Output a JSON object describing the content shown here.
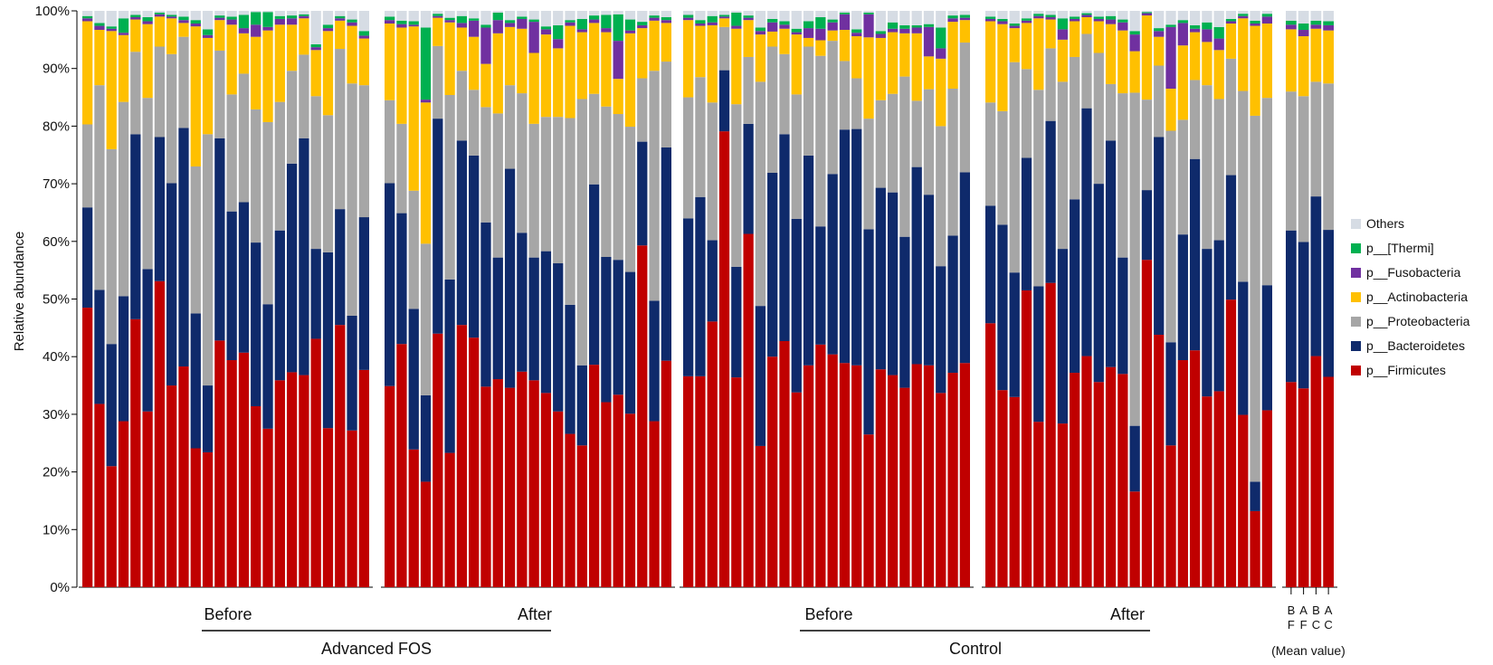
{
  "chart_data": {
    "type": "bar",
    "stacked": true,
    "ylabel": "Relative abundance",
    "ylim": [
      0,
      100
    ],
    "yticks": [
      "0%",
      "10%",
      "20%",
      "30%",
      "40%",
      "50%",
      "60%",
      "70%",
      "80%",
      "90%",
      "100%"
    ],
    "legend": {
      "placement": "right",
      "entries": [
        "Others",
        "p__[Thermi]",
        "p__Fusobacteria",
        "p__Actinobacteria",
        "p__Proteobacteria",
        "p__Bacteroidetes",
        "p__Firmicutes"
      ]
    },
    "series_order": [
      "p__Firmicutes",
      "p__Bacteroidetes",
      "p__Proteobacteria",
      "p__Actinobacteria",
      "p__Fusobacteria",
      "p__[Thermi]",
      "Others"
    ],
    "colors": {
      "p__Firmicutes": "#c00000",
      "p__Bacteroidetes": "#0f2a6b",
      "p__Proteobacteria": "#a6a6a6",
      "p__Actinobacteria": "#ffc000",
      "p__Fusobacteria": "#7030a0",
      "p__[Thermi]": "#00b050",
      "Others": "#d6dce4"
    },
    "panels": [
      {
        "id": "AF-Before",
        "cumulative": [
          [
            48.5,
            65.9,
            80.3,
            98.2,
            98.7,
            99.1
          ],
          [
            31.8,
            51.6,
            87.1,
            96.7,
            97.4,
            97.9
          ],
          [
            21.0,
            42.2,
            76.0,
            96.5,
            96.9,
            97.3
          ],
          [
            28.8,
            50.5,
            84.2,
            95.8,
            96.2,
            98.7
          ],
          [
            46.5,
            78.6,
            92.9,
            98.5,
            98.9,
            99.3
          ],
          [
            30.5,
            55.2,
            84.9,
            97.7,
            98.2,
            98.9
          ],
          [
            53.1,
            78.1,
            93.8,
            99.0,
            99.4,
            99.7
          ],
          [
            35.0,
            70.1,
            92.5,
            98.7,
            99.0,
            99.3
          ],
          [
            38.3,
            79.7,
            95.5,
            97.9,
            98.4,
            99.0
          ],
          [
            24.1,
            47.5,
            73.0,
            97.3,
            97.8,
            98.4
          ],
          [
            23.4,
            35.0,
            78.6,
            95.3,
            95.8,
            96.8
          ],
          [
            42.8,
            77.9,
            93.1,
            98.4,
            98.8,
            99.2
          ],
          [
            39.4,
            65.2,
            85.5,
            97.6,
            98.5,
            99.0
          ],
          [
            40.7,
            66.8,
            89.1,
            96.1,
            97.0,
            99.3
          ],
          [
            31.4,
            59.8,
            82.9,
            95.5,
            97.6,
            99.8
          ],
          [
            27.5,
            49.1,
            80.7,
            96.6,
            97.2,
            99.8
          ],
          [
            35.9,
            61.9,
            84.2,
            97.6,
            98.6,
            99.1
          ],
          [
            37.3,
            73.5,
            89.6,
            97.6,
            98.7,
            99.2
          ],
          [
            36.8,
            77.9,
            92.4,
            98.7,
            99.1,
            99.4
          ],
          [
            43.1,
            58.7,
            85.2,
            93.2,
            93.7,
            94.2
          ],
          [
            27.6,
            58.1,
            81.9,
            96.5,
            97.0,
            97.6
          ],
          [
            45.5,
            65.6,
            93.4,
            98.3,
            98.7,
            99.1
          ],
          [
            27.2,
            47.1,
            87.4,
            97.4,
            98.0,
            98.5
          ],
          [
            37.7,
            64.2,
            87.1,
            95.2,
            95.7,
            96.5
          ]
        ]
      },
      {
        "id": "AF-After",
        "cumulative": [
          [
            34.9,
            70.1,
            84.5,
            97.8,
            98.4,
            99.0
          ],
          [
            42.2,
            64.9,
            80.4,
            97.1,
            97.7,
            98.3
          ],
          [
            23.9,
            48.3,
            68.8,
            97.3,
            97.6,
            98.2
          ],
          [
            18.3,
            33.3,
            59.6,
            84.1,
            84.6,
            97.1
          ],
          [
            44.0,
            81.3,
            93.9,
            98.8,
            99.1,
            99.5
          ],
          [
            23.3,
            53.4,
            85.4,
            98.0,
            98.4,
            98.8
          ],
          [
            45.5,
            77.5,
            89.6,
            97.1,
            97.9,
            99.1
          ],
          [
            43.3,
            74.9,
            86.3,
            95.5,
            98.3,
            98.7
          ],
          [
            34.8,
            63.3,
            83.3,
            90.8,
            97.1,
            97.6
          ],
          [
            36.1,
            57.2,
            82.2,
            96.1,
            98.4,
            99.7
          ],
          [
            34.6,
            72.6,
            87.1,
            97.2,
            97.9,
            98.4
          ],
          [
            37.4,
            61.5,
            85.7,
            96.9,
            98.6,
            99.0
          ],
          [
            35.9,
            57.2,
            80.4,
            92.7,
            98.1,
            98.5
          ],
          [
            33.7,
            58.3,
            81.6,
            95.9,
            96.8,
            97.3
          ],
          [
            30.5,
            56.2,
            81.6,
            93.5,
            95.1,
            97.5
          ],
          [
            26.6,
            49.0,
            81.4,
            97.4,
            98.0,
            98.4
          ],
          [
            24.6,
            38.5,
            84.7,
            96.3,
            96.8,
            98.6
          ],
          [
            38.6,
            69.9,
            85.6,
            97.9,
            98.5,
            99.2
          ],
          [
            32.1,
            57.3,
            83.4,
            96.3,
            97.0,
            99.3
          ],
          [
            33.4,
            56.8,
            82.1,
            88.2,
            94.8,
            99.4
          ],
          [
            30.1,
            54.7,
            79.9,
            96.1,
            96.6,
            98.5
          ],
          [
            59.3,
            77.3,
            88.3,
            97.0,
            97.5,
            98.1
          ],
          [
            28.8,
            49.7,
            89.6,
            98.3,
            98.8,
            99.2
          ],
          [
            39.3,
            76.3,
            91.2,
            97.9,
            98.4,
            98.9
          ]
        ]
      },
      {
        "id": "C-Before",
        "cumulative": [
          [
            36.6,
            64.0,
            85.0,
            98.4,
            98.8,
            99.3
          ],
          [
            36.6,
            67.7,
            88.5,
            97.4,
            97.8,
            98.4
          ],
          [
            46.1,
            60.2,
            84.1,
            97.5,
            98.0,
            99.1
          ],
          [
            79.1,
            89.7,
            97.2,
            98.7,
            99.0,
            99.3
          ],
          [
            36.4,
            55.6,
            83.8,
            96.9,
            97.4,
            99.7
          ],
          [
            61.3,
            80.4,
            92.0,
            98.4,
            98.8,
            99.2
          ],
          [
            24.5,
            48.8,
            87.7,
            95.9,
            96.5,
            97.1
          ],
          [
            40.0,
            71.9,
            93.8,
            96.4,
            98.0,
            98.6
          ],
          [
            42.7,
            78.6,
            92.5,
            96.9,
            97.6,
            98.2
          ],
          [
            33.8,
            63.9,
            85.5,
            95.9,
            96.3,
            96.9
          ],
          [
            38.5,
            74.9,
            93.8,
            95.3,
            97.0,
            98.2
          ],
          [
            42.1,
            62.6,
            92.2,
            94.9,
            96.9,
            98.9
          ],
          [
            40.4,
            71.7,
            94.8,
            96.6,
            98.0,
            98.5
          ],
          [
            38.9,
            79.4,
            91.3,
            96.7,
            99.4,
            99.7
          ],
          [
            38.5,
            79.5,
            88.3,
            95.6,
            96.2,
            96.8
          ],
          [
            26.5,
            62.1,
            81.3,
            95.4,
            99.4,
            99.7
          ],
          [
            37.8,
            69.3,
            84.5,
            95.3,
            96.0,
            96.5
          ],
          [
            36.8,
            68.5,
            85.6,
            96.3,
            96.9,
            98.0
          ],
          [
            34.6,
            60.8,
            88.6,
            96.1,
            96.9,
            97.5
          ],
          [
            38.7,
            72.9,
            84.4,
            96.1,
            97.1,
            97.5
          ],
          [
            38.5,
            68.1,
            86.4,
            92.1,
            97.2,
            97.7
          ],
          [
            33.7,
            55.7,
            80.0,
            91.7,
            93.5,
            97.1
          ],
          [
            37.2,
            61.0,
            86.5,
            98.1,
            98.7,
            99.2
          ],
          [
            38.9,
            72.0,
            94.5,
            98.4,
            98.8,
            99.3
          ]
        ]
      },
      {
        "id": "C-After",
        "cumulative": [
          [
            45.8,
            66.2,
            84.1,
            98.2,
            98.6,
            99.0
          ],
          [
            34.2,
            62.9,
            82.6,
            97.7,
            98.2,
            98.6
          ],
          [
            33.0,
            54.6,
            91.1,
            97.0,
            97.4,
            97.8
          ],
          [
            51.5,
            74.5,
            89.9,
            97.9,
            98.3,
            98.7
          ],
          [
            28.7,
            52.2,
            86.3,
            98.7,
            99.1,
            99.5
          ],
          [
            52.8,
            80.9,
            93.5,
            98.5,
            98.9,
            99.3
          ],
          [
            28.4,
            58.7,
            87.7,
            95.0,
            96.8,
            98.7
          ],
          [
            37.2,
            67.3,
            92.0,
            98.2,
            98.6,
            99.0
          ],
          [
            40.1,
            83.1,
            96.0,
            98.9,
            99.3,
            99.6
          ],
          [
            35.6,
            70.0,
            92.7,
            98.2,
            98.6,
            99.0
          ],
          [
            38.2,
            77.5,
            87.3,
            97.7,
            98.5,
            99.1
          ],
          [
            37.0,
            57.2,
            85.7,
            96.6,
            98.0,
            98.5
          ],
          [
            16.6,
            28.0,
            85.8,
            93.0,
            95.9,
            96.5
          ],
          [
            56.8,
            68.9,
            84.6,
            99.2,
            99.6,
            99.8
          ],
          [
            43.8,
            78.1,
            90.5,
            95.5,
            96.5,
            97.0
          ],
          [
            24.6,
            42.5,
            79.2,
            86.5,
            97.2,
            97.6
          ],
          [
            39.4,
            61.2,
            81.1,
            94.0,
            97.9,
            98.4
          ],
          [
            41.1,
            74.3,
            88.0,
            96.3,
            96.9,
            97.5
          ],
          [
            33.1,
            58.7,
            87.1,
            94.6,
            96.8,
            98.0
          ],
          [
            34.0,
            60.2,
            84.7,
            93.2,
            95.2,
            97.2
          ],
          [
            49.9,
            71.5,
            91.7,
            97.8,
            98.2,
            98.6
          ],
          [
            29.9,
            53.0,
            86.1,
            98.7,
            99.1,
            99.5
          ],
          [
            13.2,
            18.3,
            81.8,
            97.4,
            97.8,
            98.3
          ],
          [
            30.7,
            52.4,
            84.9,
            97.8,
            99.0,
            99.5
          ]
        ]
      },
      {
        "id": "Mean",
        "cumulative": [
          [
            35.6,
            61.9,
            86.0,
            96.8,
            97.6,
            98.3
          ],
          [
            34.5,
            59.9,
            85.2,
            95.6,
            96.7,
            97.8
          ],
          [
            40.1,
            67.8,
            87.7,
            96.9,
            97.6,
            98.3
          ],
          [
            36.5,
            62.0,
            87.4,
            96.6,
            97.5,
            98.2
          ]
        ]
      }
    ],
    "mean_labels": [
      {
        "top": "B",
        "bottom": "F"
      },
      {
        "top": "A",
        "bottom": "F"
      },
      {
        "top": "B",
        "bottom": "C"
      },
      {
        "top": "A",
        "bottom": "C"
      }
    ],
    "mean_caption": "(Mean value)",
    "group_labels": {
      "before_af": "Before",
      "after_af": "After",
      "before_c": "Before",
      "after_c": "After",
      "advanced_fos": "Advanced FOS",
      "control": "Control"
    }
  }
}
